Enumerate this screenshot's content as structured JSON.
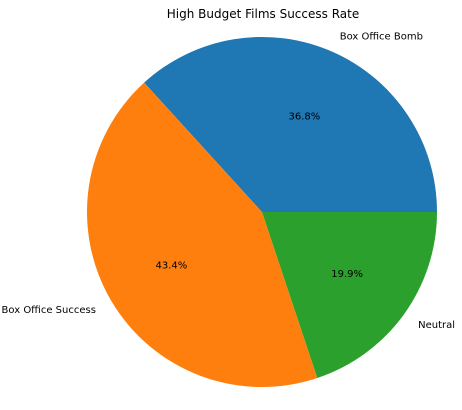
{
  "chart_data": {
    "type": "pie",
    "title": "High Budget Films Success Rate",
    "categories": [
      "Box Office Bomb",
      "Box Office Success",
      "Neutral"
    ],
    "values": [
      36.8,
      43.4,
      19.9
    ],
    "value_labels": [
      "36.8%",
      "43.4%",
      "19.9%"
    ],
    "colors": [
      "#1f77b4",
      "#ff7f0e",
      "#2ca02c"
    ],
    "start_angle_deg": 0,
    "direction": "counterclockwise"
  }
}
